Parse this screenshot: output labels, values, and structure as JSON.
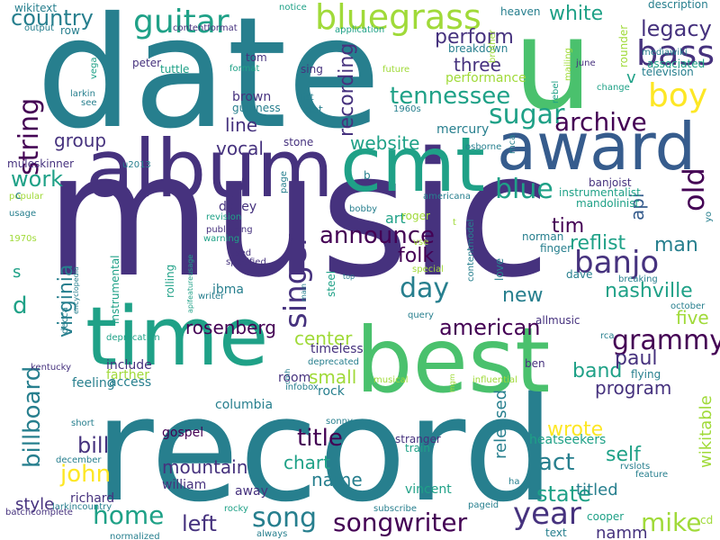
{
  "palette": {
    "background": "#ffffff",
    "dark_purple": "#440154",
    "indigo": "#46327e",
    "blue": "#365c8d",
    "teal_blue": "#277f8e",
    "teal": "#1fa187",
    "green": "#4ac16d",
    "lime": "#a0da39",
    "yellow": "#fde725"
  },
  "words": [
    {
      "text": "date",
      "color": "teal_blue"
    },
    {
      "text": "u",
      "color": "green"
    },
    {
      "text": "music",
      "color": "indigo"
    },
    {
      "text": "record",
      "color": "teal_blue"
    },
    {
      "text": "time",
      "color": "teal"
    },
    {
      "text": "best",
      "color": "green"
    },
    {
      "text": "album",
      "color": "indigo"
    },
    {
      "text": "cmt",
      "color": "teal"
    },
    {
      "text": "award",
      "color": "blue"
    },
    {
      "text": "guitar",
      "color": "teal"
    },
    {
      "text": "bluegrass",
      "color": "lime"
    },
    {
      "text": "country",
      "color": "teal_blue"
    },
    {
      "text": "string",
      "color": "dark_purple"
    },
    {
      "text": "boy",
      "color": "yellow"
    },
    {
      "text": "bass",
      "color": "indigo"
    },
    {
      "text": "legacy",
      "color": "indigo"
    },
    {
      "text": "perform",
      "color": "indigo"
    },
    {
      "text": "white",
      "color": "teal"
    },
    {
      "text": "tennessee",
      "color": "teal"
    },
    {
      "text": "sugar",
      "color": "teal"
    },
    {
      "text": "archive",
      "color": "dark_purple"
    },
    {
      "text": "three",
      "color": "indigo"
    },
    {
      "text": "recording",
      "color": "indigo"
    },
    {
      "text": "line",
      "color": "indigo"
    },
    {
      "text": "vocal",
      "color": "indigo"
    },
    {
      "text": "group",
      "color": "indigo"
    },
    {
      "text": "work",
      "color": "teal"
    },
    {
      "text": "website",
      "color": "teal"
    },
    {
      "text": "blue",
      "color": "teal"
    },
    {
      "text": "old",
      "color": "dark_purple"
    },
    {
      "text": "banjo",
      "color": "indigo"
    },
    {
      "text": "singer",
      "color": "indigo"
    },
    {
      "text": "announce",
      "color": "dark_purple"
    },
    {
      "text": "day",
      "color": "teal_blue"
    },
    {
      "text": "folk",
      "color": "dark_purple"
    },
    {
      "text": "tim",
      "color": "dark_purple"
    },
    {
      "text": "reflist",
      "color": "teal"
    },
    {
      "text": "man",
      "color": "teal_blue"
    },
    {
      "text": "nashville",
      "color": "teal"
    },
    {
      "text": "new",
      "color": "teal_blue"
    },
    {
      "text": "virginia",
      "color": "teal_blue"
    },
    {
      "text": "american",
      "color": "dark_purple"
    },
    {
      "text": "grammy",
      "color": "dark_purple"
    },
    {
      "text": "rosenberg",
      "color": "dark_purple"
    },
    {
      "text": "billboard",
      "color": "teal_blue"
    },
    {
      "text": "center",
      "color": "lime"
    },
    {
      "text": "small",
      "color": "lime"
    },
    {
      "text": "band",
      "color": "teal"
    },
    {
      "text": "paul",
      "color": "indigo"
    },
    {
      "text": "program",
      "color": "indigo"
    },
    {
      "text": "five",
      "color": "lime"
    },
    {
      "text": "bill",
      "color": "indigo"
    },
    {
      "text": "john",
      "color": "yellow"
    },
    {
      "text": "home",
      "color": "teal"
    },
    {
      "text": "title",
      "color": "dark_purple"
    },
    {
      "text": "act",
      "color": "teal_blue"
    },
    {
      "text": "wrote",
      "color": "yellow"
    },
    {
      "text": "mountain",
      "color": "indigo"
    },
    {
      "text": "chart",
      "color": "teal"
    },
    {
      "text": "name",
      "color": "teal_blue"
    },
    {
      "text": "state",
      "color": "teal"
    },
    {
      "text": "self",
      "color": "teal"
    },
    {
      "text": "left",
      "color": "indigo"
    },
    {
      "text": "song",
      "color": "teal_blue"
    },
    {
      "text": "songwriter",
      "color": "dark_purple"
    },
    {
      "text": "year",
      "color": "indigo"
    },
    {
      "text": "mike",
      "color": "lime"
    },
    {
      "text": "style",
      "color": "indigo"
    },
    {
      "text": "titled",
      "color": "teal_blue"
    },
    {
      "text": "namm",
      "color": "indigo"
    },
    {
      "text": "released",
      "color": "teal_blue"
    },
    {
      "text": "wikitable",
      "color": "lime"
    },
    {
      "text": "d",
      "color": "teal"
    },
    {
      "text": "s",
      "color": "teal"
    },
    {
      "text": "api",
      "color": "blue"
    },
    {
      "text": "v",
      "color": "teal"
    },
    {
      "text": "art",
      "color": "teal"
    },
    {
      "text": "dailey",
      "color": "indigo"
    },
    {
      "text": "ibma",
      "color": "teal_blue"
    },
    {
      "text": "access",
      "color": "teal_blue"
    },
    {
      "text": "timeless",
      "color": "indigo"
    },
    {
      "text": "rock",
      "color": "teal_blue"
    },
    {
      "text": "columbia",
      "color": "teal_blue"
    },
    {
      "text": "feeling",
      "color": "teal_blue"
    },
    {
      "text": "include",
      "color": "indigo"
    },
    {
      "text": "farther",
      "color": "lime"
    },
    {
      "text": "gospel",
      "color": "dark_purple"
    },
    {
      "text": "richard",
      "color": "indigo"
    },
    {
      "text": "william",
      "color": "indigo"
    },
    {
      "text": "vincent",
      "color": "teal"
    },
    {
      "text": "away",
      "color": "indigo"
    },
    {
      "text": "room",
      "color": "indigo"
    },
    {
      "text": "heatseekers",
      "color": "teal"
    },
    {
      "text": "heaven",
      "color": "teal_blue"
    },
    {
      "text": "rounder",
      "color": "lime"
    },
    {
      "text": "associated",
      "color": "teal"
    },
    {
      "text": "television",
      "color": "teal_blue"
    },
    {
      "text": "breakdown",
      "color": "teal_blue"
    },
    {
      "text": "description",
      "color": "teal_blue"
    },
    {
      "text": "wikitext",
      "color": "teal_blue"
    },
    {
      "text": "notice",
      "color": "teal"
    },
    {
      "text": "application",
      "color": "teal"
    },
    {
      "text": "contentformat",
      "color": "indigo"
    },
    {
      "text": "output",
      "color": "teal_blue"
    },
    {
      "text": "row",
      "color": "teal_blue"
    },
    {
      "text": "tom",
      "color": "indigo"
    },
    {
      "text": "peter",
      "color": "indigo"
    },
    {
      "text": "tuttle",
      "color": "teal"
    },
    {
      "text": "format",
      "color": "teal"
    },
    {
      "text": "vega",
      "color": "teal"
    },
    {
      "text": "larkin",
      "color": "teal_blue"
    },
    {
      "text": "see",
      "color": "teal_blue"
    },
    {
      "text": "sing",
      "color": "indigo"
    },
    {
      "text": "brown",
      "color": "indigo"
    },
    {
      "text": "guinness",
      "color": "teal_blue"
    },
    {
      "text": "dot",
      "color": "teal_blue"
    },
    {
      "text": "list",
      "color": "teal_blue"
    },
    {
      "text": "stone",
      "color": "indigo"
    },
    {
      "text": "1960s",
      "color": "teal_blue"
    },
    {
      "text": "mercury",
      "color": "teal_blue"
    },
    {
      "text": "osborne",
      "color": "teal_blue"
    },
    {
      "text": "mca",
      "color": "teal_blue"
    },
    {
      "text": "mediawiki",
      "color": "teal_blue"
    },
    {
      "text": "change",
      "color": "teal"
    },
    {
      "text": "june",
      "color": "indigo"
    },
    {
      "text": "mailing",
      "color": "lime"
    },
    {
      "text": "rebel",
      "color": "teal"
    },
    {
      "text": "brother",
      "color": "lime"
    },
    {
      "text": "future",
      "color": "lime"
    },
    {
      "text": "performance",
      "color": "lime"
    },
    {
      "text": "u2013",
      "color": "teal_blue"
    },
    {
      "text": "muleskinner",
      "color": "indigo"
    },
    {
      "text": "popular",
      "color": "lime"
    },
    {
      "text": "usage",
      "color": "teal_blue"
    },
    {
      "text": "1970s",
      "color": "lime"
    },
    {
      "text": "c",
      "color": "teal_blue"
    },
    {
      "text": "page",
      "color": "teal_blue"
    },
    {
      "text": "b",
      "color": "teal_blue"
    },
    {
      "text": "bobby",
      "color": "teal_blue"
    },
    {
      "text": "banjoist",
      "color": "indigo"
    },
    {
      "text": "instrumentalist",
      "color": "teal"
    },
    {
      "text": "mandolinist",
      "color": "teal"
    },
    {
      "text": "americana",
      "color": "teal_blue"
    },
    {
      "text": "roger",
      "color": "lime"
    },
    {
      "text": "norman",
      "color": "teal_blue"
    },
    {
      "text": "finger",
      "color": "teal_blue"
    },
    {
      "text": "contentmodel",
      "color": "teal_blue"
    },
    {
      "text": "love",
      "color": "teal_blue"
    },
    {
      "text": "dave",
      "color": "teal_blue"
    },
    {
      "text": "breaking",
      "color": "teal_blue"
    },
    {
      "text": "october",
      "color": "teal_blue"
    },
    {
      "text": "yo",
      "color": "teal_blue"
    },
    {
      "text": "revision",
      "color": "teal"
    },
    {
      "text": "publishing",
      "color": "indigo"
    },
    {
      "text": "warning",
      "color": "teal"
    },
    {
      "text": "used",
      "color": "indigo"
    },
    {
      "text": "specified",
      "color": "indigo"
    },
    {
      "text": "writer",
      "color": "teal_blue"
    },
    {
      "text": "instrumental",
      "color": "teal"
    },
    {
      "text": "encyclopedia",
      "color": "teal_blue"
    },
    {
      "text": "apifeatureusage",
      "color": "teal"
    },
    {
      "text": "rolling",
      "color": "teal"
    },
    {
      "text": "steel",
      "color": "teal"
    },
    {
      "text": "main",
      "color": "teal_blue"
    },
    {
      "text": "top",
      "color": "teal_blue"
    },
    {
      "text": "vse",
      "color": "lime"
    },
    {
      "text": "special",
      "color": "lime"
    },
    {
      "text": "query",
      "color": "teal_blue"
    },
    {
      "text": "allmusic",
      "color": "indigo"
    },
    {
      "text": "deprecation",
      "color": "teal"
    },
    {
      "text": "decca",
      "color": "teal_blue"
    },
    {
      "text": "deprecated",
      "color": "teal_blue"
    },
    {
      "text": "cmh",
      "color": "teal_blue"
    },
    {
      "text": "infobox",
      "color": "teal_blue"
    },
    {
      "text": "kentucky",
      "color": "indigo"
    },
    {
      "text": "flying",
      "color": "teal_blue"
    },
    {
      "text": "rca",
      "color": "teal_blue"
    },
    {
      "text": "ben",
      "color": "indigo"
    },
    {
      "text": "influential",
      "color": "lime"
    },
    {
      "text": "musical",
      "color": "lime"
    },
    {
      "text": "mgm",
      "color": "lime"
    },
    {
      "text": "sonny",
      "color": "teal_blue"
    },
    {
      "text": "short",
      "color": "teal_blue"
    },
    {
      "text": "december",
      "color": "teal_blue"
    },
    {
      "text": "stranger",
      "color": "indigo"
    },
    {
      "text": "train",
      "color": "teal"
    },
    {
      "text": "ha",
      "color": "teal_blue"
    },
    {
      "text": "rvslots",
      "color": "teal_blue"
    },
    {
      "text": "feature",
      "color": "teal_blue"
    },
    {
      "text": "cooper",
      "color": "teal"
    },
    {
      "text": "larkincountry",
      "color": "teal_blue"
    },
    {
      "text": "batchcomplete",
      "color": "indigo"
    },
    {
      "text": "rocky",
      "color": "teal"
    },
    {
      "text": "subscribe",
      "color": "teal_blue"
    },
    {
      "text": "pageid",
      "color": "teal_blue"
    },
    {
      "text": "normalized",
      "color": "teal_blue"
    },
    {
      "text": "always",
      "color": "teal_blue"
    },
    {
      "text": "text",
      "color": "teal_blue"
    },
    {
      "text": "cd",
      "color": "lime"
    },
    {
      "text": "t",
      "color": "lime"
    }
  ]
}
